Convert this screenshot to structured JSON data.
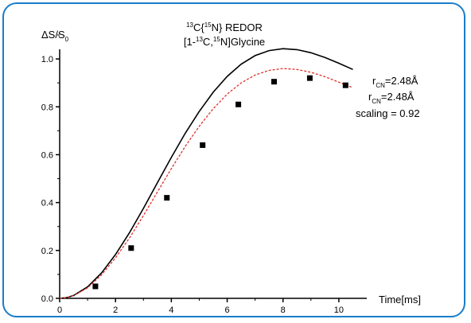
{
  "chart_data": {
    "type": "scatter",
    "title": {
      "line1": {
        "pre": "",
        "sup1": "13",
        "mid": "C{",
        "sup2": "15",
        "post": "N} REDOR"
      },
      "line2": {
        "pre": "[1-",
        "sup1": "13",
        "mid": "C,",
        "sup2": "15",
        "post": "N]Glycine"
      }
    },
    "xlabel": "Time[ms]",
    "ylabel": {
      "pre": "ΔS/S",
      "sub": "0"
    },
    "xlim": [
      0,
      11
    ],
    "ylim": [
      0,
      1.1
    ],
    "x_ticks": [
      0,
      2,
      4,
      6,
      8,
      10
    ],
    "y_ticks": [
      0.0,
      0.2,
      0.4,
      0.6,
      0.8,
      1.0
    ],
    "x_tick_labels": [
      "0",
      "2",
      "4",
      "6",
      "8",
      "10"
    ],
    "y_tick_labels": [
      "0.0",
      "0.2",
      "0.4",
      "0.6",
      "0.8",
      "1.0"
    ],
    "grid": false,
    "series": [
      {
        "kind": "points",
        "color": "#000000",
        "x": [
          1.28,
          2.56,
          3.84,
          5.12,
          6.4,
          7.68,
          8.96,
          10.24
        ],
        "y": [
          0.05,
          0.21,
          0.42,
          0.64,
          0.81,
          0.905,
          0.92,
          0.89
        ]
      },
      {
        "kind": "line",
        "style": "solid",
        "color": "#000000",
        "x": [
          0,
          0.25,
          0.5,
          1,
          1.5,
          2,
          2.5,
          3,
          3.5,
          4,
          4.5,
          5,
          5.5,
          6,
          6.5,
          7,
          7.5,
          8,
          8.5,
          9,
          9.5,
          10,
          10.5
        ],
        "y": [
          0,
          0.003,
          0.012,
          0.048,
          0.106,
          0.183,
          0.274,
          0.376,
          0.483,
          0.589,
          0.69,
          0.781,
          0.861,
          0.927,
          0.978,
          1.014,
          1.035,
          1.043,
          1.039,
          1.026,
          1.006,
          0.982,
          0.956
        ]
      },
      {
        "kind": "line",
        "style": "dashed",
        "color": "#e0302a",
        "x": [
          0,
          0.25,
          0.5,
          1,
          1.5,
          2,
          2.5,
          3,
          3.5,
          4,
          4.5,
          5,
          5.5,
          6,
          6.5,
          7,
          7.5,
          8,
          8.5,
          9,
          9.5,
          10,
          10.5
        ],
        "y": [
          0,
          0.003,
          0.011,
          0.044,
          0.098,
          0.169,
          0.252,
          0.346,
          0.444,
          0.542,
          0.635,
          0.719,
          0.792,
          0.853,
          0.9,
          0.933,
          0.952,
          0.96,
          0.956,
          0.944,
          0.926,
          0.903,
          0.88
        ]
      }
    ],
    "annotations": [
      {
        "pre": "r",
        "sub": "CN",
        "post": "=2.48Å"
      },
      {
        "pre": "r",
        "sub": "CN",
        "post": "=2.48Å"
      },
      {
        "pre": "scaling = 0.92",
        "sub": "",
        "post": ""
      }
    ]
  },
  "colors": {
    "frame": "#1a7dc9",
    "dashed_curve": "#e0302a"
  }
}
